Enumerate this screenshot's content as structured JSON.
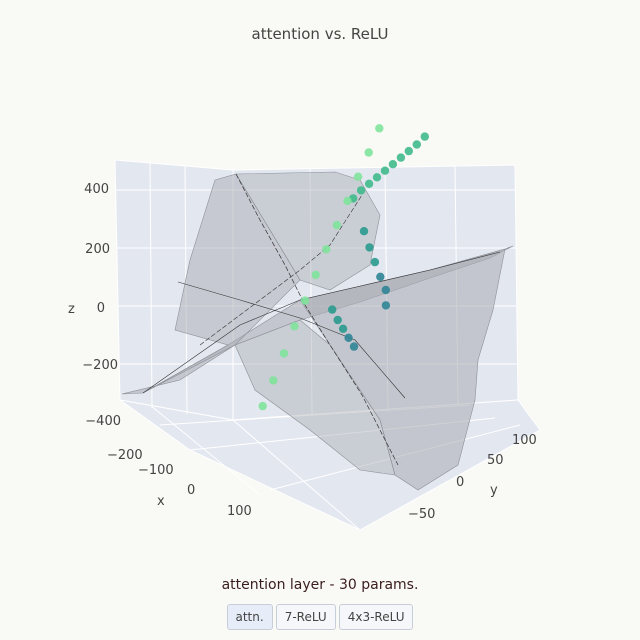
{
  "chart_data": {
    "type": "surface3d",
    "title": "attention vs. ReLU",
    "xlabel": "x",
    "ylabel": "y",
    "zlabel": "z",
    "x_ticks": [
      "−200",
      "−100",
      "0",
      "100"
    ],
    "y_ticks": [
      "100",
      "50",
      "0",
      "−50"
    ],
    "z_ticks": [
      "400",
      "200",
      "0",
      "−200",
      "−400"
    ],
    "surface_color": "#a9acb2",
    "point_colors": [
      "#7fe39b",
      "#3fba8c",
      "#2a9a8e",
      "#2f8496"
    ],
    "points": [
      {
        "x": -195,
        "y": 20,
        "z": -75
      },
      {
        "x": -180,
        "y": 20,
        "z": -55
      },
      {
        "x": -165,
        "y": 20,
        "z": -30
      },
      {
        "x": -150,
        "y": 20,
        "z": -5
      },
      {
        "x": -135,
        "y": 20,
        "z": 20
      },
      {
        "x": -120,
        "y": 20,
        "z": 45
      },
      {
        "x": -105,
        "y": 20,
        "z": 70
      },
      {
        "x": -90,
        "y": 20,
        "z": 95
      },
      {
        "x": -75,
        "y": 20,
        "z": 120
      },
      {
        "x": -60,
        "y": 20,
        "z": 140
      },
      {
        "x": -190,
        "y": -20,
        "z": 30
      },
      {
        "x": -170,
        "y": -20,
        "z": 10
      },
      {
        "x": -150,
        "y": -20,
        "z": -10
      },
      {
        "x": -130,
        "y": -20,
        "z": -30
      },
      {
        "x": -110,
        "y": -20,
        "z": -50
      },
      {
        "x": -90,
        "y": -20,
        "z": -70
      },
      {
        "x": -70,
        "y": -20,
        "z": -95
      },
      {
        "x": -50,
        "y": -20,
        "z": -120
      },
      {
        "x": -30,
        "y": -20,
        "z": -145
      },
      {
        "x": -10,
        "y": -20,
        "z": -175
      },
      {
        "x": 10,
        "y": -20,
        "z": -205
      },
      {
        "x": 30,
        "y": -20,
        "z": -230
      },
      {
        "x": -40,
        "y": 40,
        "z": 60
      },
      {
        "x": -20,
        "y": 55,
        "z": 45
      },
      {
        "x": 0,
        "y": 70,
        "z": 35
      },
      {
        "x": 20,
        "y": 85,
        "z": 25
      },
      {
        "x": 40,
        "y": 100,
        "z": 20
      },
      {
        "x": 60,
        "y": 110,
        "z": 15
      },
      {
        "x": 20,
        "y": 40,
        "z": -20
      },
      {
        "x": 40,
        "y": 55,
        "z": -15
      },
      {
        "x": 60,
        "y": 70,
        "z": -5
      },
      {
        "x": 80,
        "y": 85,
        "z": 5
      },
      {
        "x": 100,
        "y": 100,
        "z": 15
      }
    ]
  },
  "subtitle": "attention layer - 30 params.",
  "buttons": [
    {
      "label": "attn.",
      "active": true
    },
    {
      "label": "7-ReLU",
      "active": false
    },
    {
      "label": "4x3-ReLU",
      "active": false
    }
  ]
}
